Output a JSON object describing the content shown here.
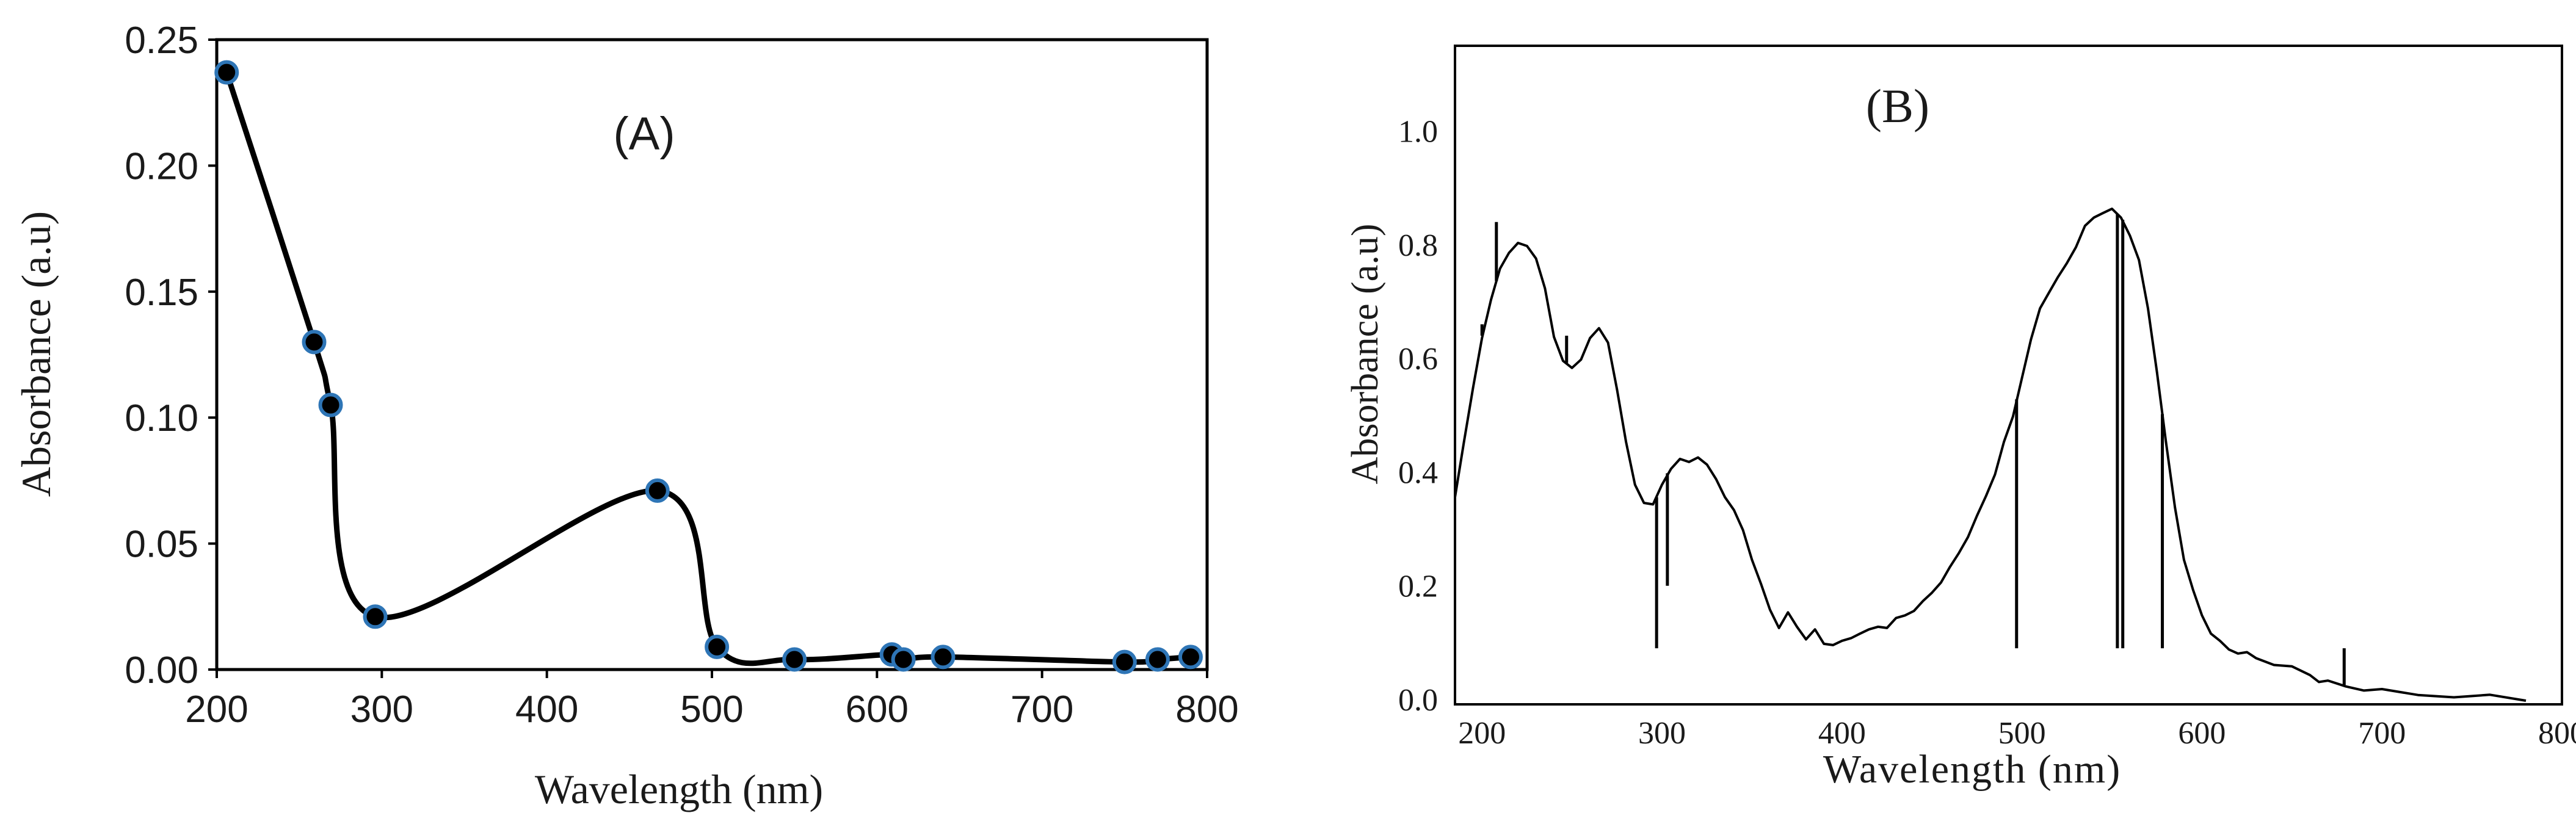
{
  "chart_data": [
    {
      "panel_label": "(A)",
      "type": "line",
      "xlabel": "Wavelength (nm)",
      "ylabel": "Absorbance (a.u)",
      "xlim": [
        200,
        800
      ],
      "ylim": [
        0,
        0.25
      ],
      "x_ticks": [
        "200",
        "300",
        "400",
        "500",
        "600",
        "700",
        "800"
      ],
      "y_ticks": [
        "0.00",
        "0.05",
        "0.10",
        "0.15",
        "0.20",
        "0.25"
      ],
      "marker_color": "#2e75b6",
      "line_color": "#000000",
      "series": [
        {
          "x": [
            206,
            259,
            269,
            296,
            467,
            503,
            550,
            609,
            616,
            640,
            750,
            770,
            790
          ],
          "values": [
            0.237,
            0.13,
            0.105,
            0.021,
            0.071,
            0.009,
            0.004,
            0.006,
            0.004,
            0.005,
            0.003,
            0.004,
            0.005
          ]
        }
      ]
    },
    {
      "panel_label": "(B)",
      "type": "line",
      "xlabel": "Wavelength (nm)",
      "ylabel": "Absorbance (a.u)",
      "xlim": [
        185,
        800
      ],
      "ylim": [
        0,
        1.15
      ],
      "x_ticks": [
        "200",
        "300",
        "400",
        "500",
        "600",
        "700",
        "800"
      ],
      "y_ticks": [
        "0.0",
        "0.2",
        "0.4",
        "0.6",
        "0.8",
        "1.0"
      ],
      "line_color": "#000000",
      "series": [
        {
          "x": [
            185,
            190,
            195,
            200,
            205,
            210,
            215,
            220,
            225,
            230,
            235,
            240,
            245,
            250,
            255,
            260,
            265,
            270,
            275,
            280,
            285,
            290,
            295,
            300,
            305,
            310,
            315,
            320,
            325,
            330,
            335,
            340,
            345,
            350,
            355,
            360,
            365,
            370,
            375,
            380,
            385,
            390,
            395,
            400,
            405,
            410,
            415,
            420,
            425,
            430,
            435,
            440,
            445,
            450,
            455,
            460,
            465,
            470,
            475,
            480,
            485,
            490,
            495,
            500,
            505,
            510,
            515,
            520,
            525,
            530,
            535,
            540,
            545,
            550,
            555,
            560,
            565,
            570,
            575,
            580,
            585,
            590,
            595,
            600,
            605,
            610,
            615,
            620,
            625,
            630,
            640,
            650,
            660,
            665,
            670,
            680,
            690,
            700,
            720,
            740,
            760,
            780
          ],
          "values": [
            0.36,
            0.45,
            0.55,
            0.64,
            0.7,
            0.76,
            0.79,
            0.8,
            0.8,
            0.78,
            0.72,
            0.64,
            0.6,
            0.58,
            0.6,
            0.64,
            0.65,
            0.63,
            0.55,
            0.45,
            0.38,
            0.35,
            0.34,
            0.38,
            0.41,
            0.42,
            0.42,
            0.43,
            0.41,
            0.39,
            0.36,
            0.33,
            0.3,
            0.25,
            0.2,
            0.16,
            0.13,
            0.15,
            0.13,
            0.11,
            0.12,
            0.1,
            0.1,
            0.1,
            0.11,
            0.12,
            0.12,
            0.13,
            0.13,
            0.14,
            0.15,
            0.16,
            0.17,
            0.19,
            0.21,
            0.23,
            0.26,
            0.29,
            0.32,
            0.36,
            0.4,
            0.45,
            0.5,
            0.57,
            0.63,
            0.69,
            0.72,
            0.74,
            0.77,
            0.8,
            0.83,
            0.85,
            0.86,
            0.86,
            0.85,
            0.82,
            0.77,
            0.69,
            0.58,
            0.45,
            0.34,
            0.25,
            0.19,
            0.15,
            0.12,
            0.1,
            0.09,
            0.085,
            0.08,
            0.075,
            0.065,
            0.055,
            0.045,
            0.035,
            0.03,
            0.025,
            0.02,
            0.015,
            0.01,
            0.008,
            0.005,
            0.0
          ]
        }
      ],
      "spikes": [
        {
          "x": 208,
          "y": 0.84
        },
        {
          "x": 200,
          "y": 0.66
        },
        {
          "x": 247,
          "y": 0.64
        },
        {
          "x": 297,
          "y": 0.09
        },
        {
          "x": 303,
          "y": 0.2
        },
        {
          "x": 497,
          "y": 0.09
        },
        {
          "x": 553,
          "y": 0.09
        },
        {
          "x": 556,
          "y": 0.09
        },
        {
          "x": 578,
          "y": 0.09
        },
        {
          "x": 679,
          "y": 0.09
        }
      ]
    }
  ]
}
